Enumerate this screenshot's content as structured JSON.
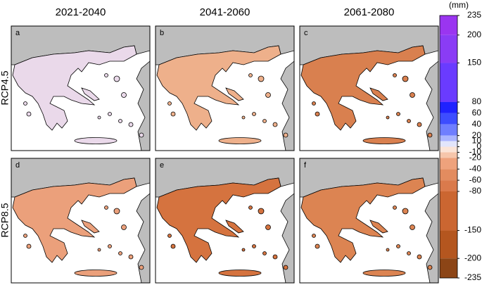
{
  "columns": [
    "2021-2040",
    "2041-2060",
    "2061-2080"
  ],
  "rows": [
    "RCP4.5",
    "RCP8.5"
  ],
  "panels": [
    "a",
    "b",
    "c",
    "d",
    "e",
    "f"
  ],
  "colorbar": {
    "unit": "(mm)",
    "lim": [
      -235,
      235
    ],
    "ticks": [
      235,
      200,
      150,
      80,
      60,
      40,
      20,
      10,
      0,
      -10,
      -20,
      -40,
      -60,
      -80,
      -150,
      -200,
      -235
    ],
    "colors": [
      "#9a35f0",
      "#8a3cf5",
      "#6a3bff",
      "#1f22ff",
      "#3d4dff",
      "#6f7eff",
      "#aab4ff",
      "#e2e5fb",
      "#fbe4d7",
      "#f6c6ab",
      "#eea27c",
      "#e38c5f",
      "#da7a4c",
      "#cb6631",
      "#b4561f",
      "#8c4516"
    ]
  }
}
